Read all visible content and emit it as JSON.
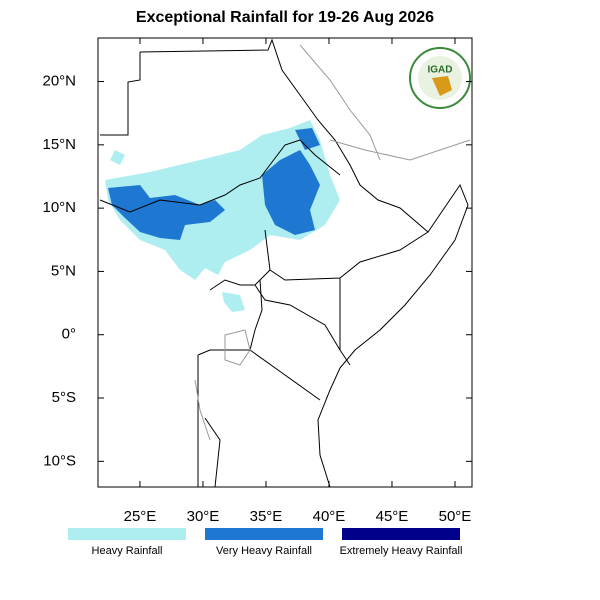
{
  "map": {
    "title": "Exceptional Rainfall for 19-26 Aug 2026",
    "logo": "IGAD",
    "lonlim": [
      21.67,
      51.35
    ],
    "latlim": [
      -12.03,
      23.44
    ],
    "xticks": [
      {
        "value": 25,
        "label": "25°E"
      },
      {
        "value": 30,
        "label": "30°E"
      },
      {
        "value": 35,
        "label": "35°E"
      },
      {
        "value": 40,
        "label": "40°E"
      },
      {
        "value": 45,
        "label": "45°E"
      },
      {
        "value": 50,
        "label": "50°E"
      }
    ],
    "yticks": [
      {
        "value": 20,
        "label": "20°N"
      },
      {
        "value": 15,
        "label": "15°N"
      },
      {
        "value": 10,
        "label": "10°N"
      },
      {
        "value": 5,
        "label": "5°N"
      },
      {
        "value": 0,
        "label": "0°"
      },
      {
        "value": -5,
        "label": "5°S"
      },
      {
        "value": -10,
        "label": "10°S"
      }
    ],
    "legend": [
      {
        "name": "Heavy Rainfall",
        "color": "#aeeef0"
      },
      {
        "name": "Very Heavy Rainfall",
        "color": "#1e78d2"
      },
      {
        "name": "Extremely Heavy Rainfall",
        "color": "#00008b"
      }
    ]
  }
}
